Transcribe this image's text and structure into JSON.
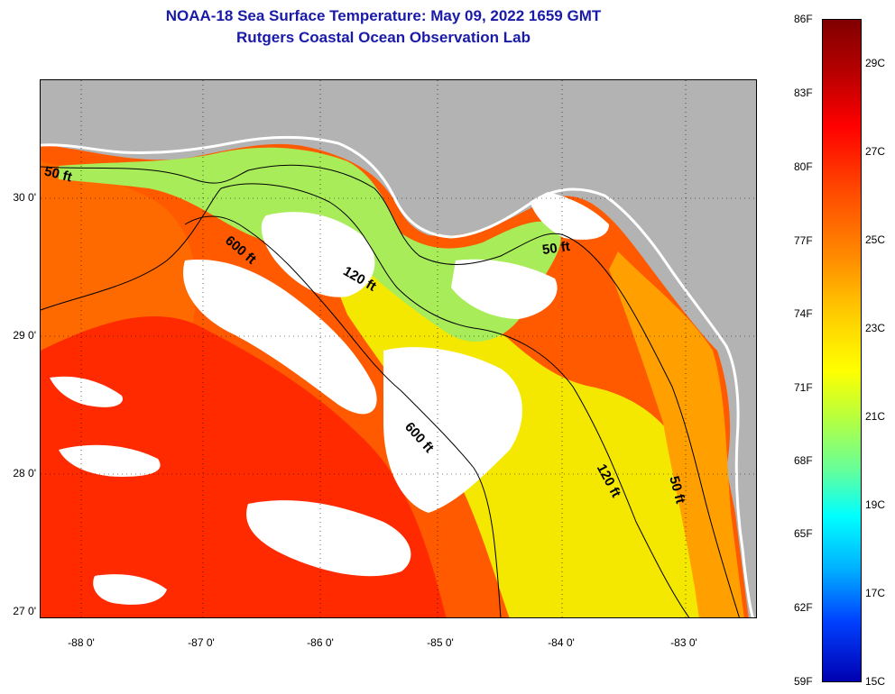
{
  "header": {
    "title": "NOAA-18 Sea Surface Temperature:  May 09, 2022 1659 GMT",
    "subtitle": "Rutgers Coastal Ocean Observation Lab"
  },
  "map": {
    "x_ticks": [
      "-88 0'",
      "-87 0'",
      "-86 0'",
      "-85 0'",
      "-84 0'",
      "-83 0'"
    ],
    "y_ticks": [
      "30 0'",
      "29 0'",
      "28 0'",
      "27 0'"
    ],
    "contour_labels": {
      "c50_west": "50 ft",
      "c600_north": "600 ft",
      "c120_mid": "120 ft",
      "c50_east": "50 ft",
      "c600_south": "600 ft",
      "c120_south": "120 ft",
      "c50_south": "50 ft"
    },
    "colors": {
      "land": "#b3b3b3",
      "cloud": "#ffffff",
      "warm": "#ff4a00",
      "hot": "#ff1a00",
      "cool": "#a8f060",
      "mid": "#f4f000"
    }
  },
  "colorbar": {
    "fahrenheit": [
      "86F",
      "83F",
      "80F",
      "77F",
      "74F",
      "71F",
      "68F",
      "65F",
      "62F",
      "59F"
    ],
    "celsius": [
      "29C",
      "27C",
      "25C",
      "23C",
      "21C",
      "19C",
      "17C",
      "15C"
    ]
  }
}
